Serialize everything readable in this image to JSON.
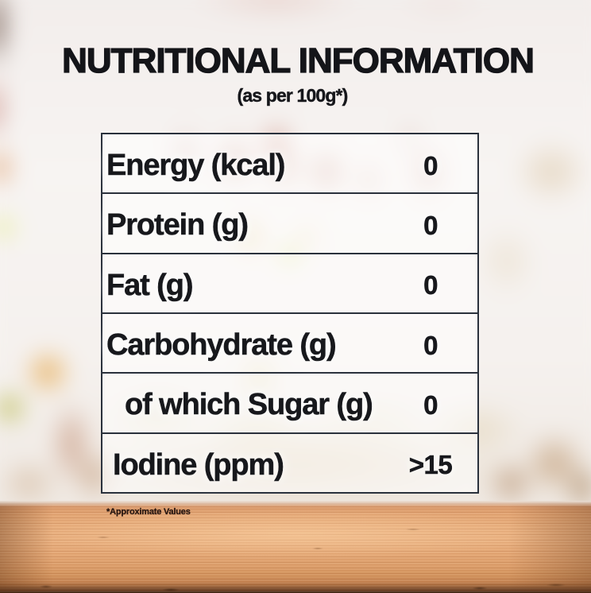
{
  "label": {
    "title": "NUTRITIONAL INFORMATION",
    "subtitle": "(as per 100g*)",
    "footnote": "*Approximate Values"
  },
  "table": {
    "rows": [
      {
        "label": "Energy (kcal)",
        "value": "0"
      },
      {
        "label": "Protein (g)",
        "value": "0"
      },
      {
        "label": "Fat (g)",
        "value": "0"
      },
      {
        "label": "Carbohydrate (g)",
        "value": "0"
      },
      {
        "label": "of which Sugar (g)",
        "value": "0"
      },
      {
        "label": "Iodine (ppm)",
        "value": ">15"
      }
    ]
  },
  "colors": {
    "text": "#17181c",
    "table_border": "#2a313c",
    "wood": "#d89c6d"
  }
}
